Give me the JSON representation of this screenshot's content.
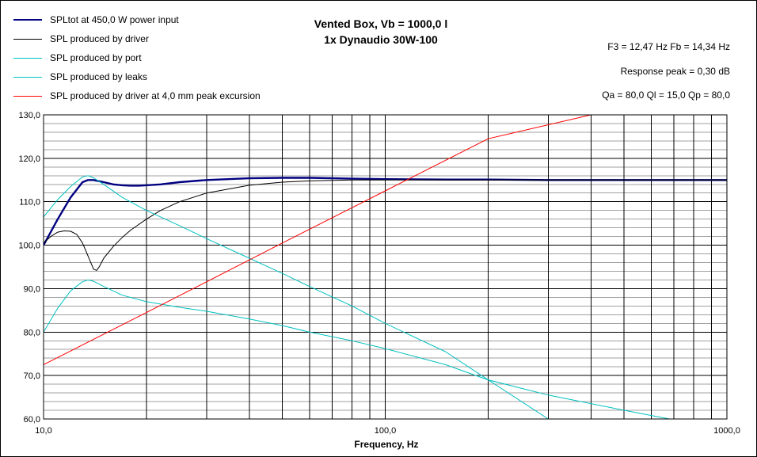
{
  "chart_data": {
    "type": "line",
    "title": "Vented Box, Vb = 1000,0 l",
    "subtitle": "1x Dynaudio 30W-100",
    "xlabel": "Frequency, Hz",
    "ylabel": "",
    "x_scale": "log",
    "xlim": [
      10,
      1000
    ],
    "ylim": [
      60,
      130
    ],
    "x_ticks": [
      "10,0",
      "100,0",
      "1000,0"
    ],
    "y_ticks": [
      "60,0",
      "70,0",
      "80,0",
      "90,0",
      "100,0",
      "110,0",
      "120,0",
      "130,0"
    ],
    "grid": true,
    "legend_position": "top-left",
    "annotations": [
      "F3 = 12,47 Hz  Fb = 14,34 Hz",
      "Response peak = 0,30 dB",
      "Qa = 80,0  Ql = 15,0  Qp = 80,0"
    ],
    "series": [
      {
        "name": "SPLtot at 450,0 W power input",
        "color": "#000080",
        "x": [
          10,
          11,
          12,
          13,
          13.5,
          14,
          15,
          16,
          17,
          18,
          19,
          20,
          22,
          25,
          30,
          40,
          50,
          60,
          80,
          100,
          150,
          200,
          300,
          500,
          1000
        ],
        "y": [
          100,
          106,
          111,
          114.5,
          115,
          115,
          114.5,
          114,
          113.8,
          113.7,
          113.7,
          113.8,
          114,
          114.5,
          115,
          115.4,
          115.5,
          115.5,
          115.3,
          115.2,
          115.1,
          115.1,
          115,
          115,
          115
        ]
      },
      {
        "name": "SPL produced by driver",
        "color": "#000000",
        "x": [
          10,
          10.5,
          11,
          11.5,
          12,
          12.5,
          13,
          13.5,
          14,
          14.3,
          14.6,
          15,
          16,
          17,
          18,
          20,
          22,
          25,
          30,
          40,
          50,
          60,
          80,
          100,
          150,
          200,
          500,
          1000
        ],
        "y": [
          100.5,
          102,
          103,
          103.3,
          103.2,
          102.5,
          100.5,
          97.5,
          94.5,
          94.2,
          95.2,
          97,
          99.7,
          101.8,
          103.5,
          106,
          108,
          110,
          112,
          113.8,
          114.5,
          114.8,
          115,
          115,
          115,
          115,
          115,
          115
        ]
      },
      {
        "name": "SPL produced by port",
        "color": "#00c0c0",
        "x": [
          10,
          11,
          12,
          13,
          13.5,
          14,
          15,
          17,
          20,
          25,
          30,
          40,
          50,
          60,
          80,
          100,
          150,
          200,
          300
        ],
        "y": [
          106.5,
          110.5,
          113.5,
          115.7,
          116,
          115.5,
          114,
          111,
          108,
          104.5,
          101.5,
          97,
          93.5,
          90.5,
          86,
          82,
          75.5,
          69,
          60
        ]
      },
      {
        "name": "SPL produced by leaks",
        "color": "#00c0c0",
        "x": [
          10,
          11,
          12,
          13,
          13.5,
          14,
          15,
          17,
          20,
          25,
          30,
          40,
          50,
          60,
          80,
          100,
          150,
          200,
          300,
          500,
          700
        ],
        "y": [
          80,
          85.5,
          89.5,
          91.6,
          92,
          91.7,
          90.5,
          88.5,
          87,
          85.7,
          84.8,
          83,
          81.5,
          80,
          78,
          76.2,
          72.5,
          69,
          65.5,
          62,
          59.8
        ]
      },
      {
        "name": "SPL produced by driver at 4,0 mm peak excursion",
        "color": "#ff0000",
        "x": [
          10,
          20,
          50,
          100,
          200,
          400
        ],
        "y": [
          72.5,
          84.5,
          100.5,
          112.5,
          124.5,
          130
        ]
      }
    ]
  }
}
